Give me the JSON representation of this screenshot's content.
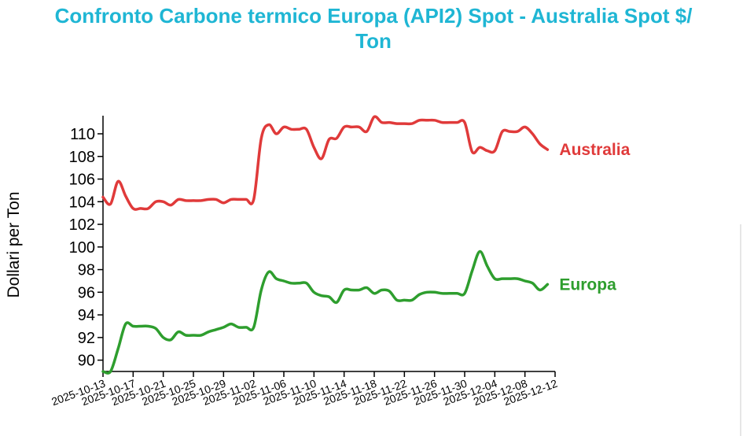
{
  "chart_data": {
    "type": "line",
    "title_lines": [
      "Confronto Carbone termico Europa (API2) Spot - Australia Spot $/",
      "Ton"
    ],
    "ylabel": "Dollari per Ton",
    "xlabel": "",
    "ylim": [
      89,
      111.6
    ],
    "y_ticks": [
      90,
      92,
      94,
      96,
      98,
      100,
      102,
      104,
      106,
      108,
      110
    ],
    "x_start": "2025-10-13",
    "x_end": "2025-12-12",
    "x_ticks": [
      "2025-10-13",
      "2025-10-17",
      "2025-10-21",
      "2025-10-25",
      "2025-10-29",
      "2025-11-02",
      "2025-11-06",
      "2025-11-10",
      "2025-11-14",
      "2025-11-18",
      "2025-11-22",
      "2025-11-26",
      "2025-11-30",
      "2025-12-04",
      "2025-12-08",
      "2025-12-12"
    ],
    "grid": false,
    "legend": "end-of-line labels",
    "series": [
      {
        "name": "Australia",
        "color": "#e03a3a",
        "x": [
          "2025-10-13",
          "2025-10-14",
          "2025-10-15",
          "2025-10-16",
          "2025-10-17",
          "2025-10-18",
          "2025-10-19",
          "2025-10-20",
          "2025-10-21",
          "2025-10-22",
          "2025-10-23",
          "2025-10-24",
          "2025-10-25",
          "2025-10-26",
          "2025-10-27",
          "2025-10-28",
          "2025-10-29",
          "2025-10-30",
          "2025-10-31",
          "2025-11-01",
          "2025-11-02",
          "2025-11-03",
          "2025-11-04",
          "2025-11-05",
          "2025-11-06",
          "2025-11-07",
          "2025-11-08",
          "2025-11-09",
          "2025-11-10",
          "2025-11-11",
          "2025-11-12",
          "2025-11-13",
          "2025-11-14",
          "2025-11-15",
          "2025-11-16",
          "2025-11-17",
          "2025-11-18",
          "2025-11-19",
          "2025-11-20",
          "2025-11-21",
          "2025-11-22",
          "2025-11-23",
          "2025-11-24",
          "2025-11-25",
          "2025-11-26",
          "2025-11-27",
          "2025-11-28",
          "2025-11-29",
          "2025-11-30",
          "2025-12-01",
          "2025-12-02",
          "2025-12-03",
          "2025-12-04",
          "2025-12-05",
          "2025-12-06",
          "2025-12-07",
          "2025-12-08",
          "2025-12-09",
          "2025-12-10",
          "2025-12-11"
        ],
        "values": [
          104.4,
          103.8,
          105.8,
          104.5,
          103.4,
          103.4,
          103.4,
          104.0,
          104.0,
          103.7,
          104.2,
          104.1,
          104.1,
          104.1,
          104.2,
          104.2,
          103.9,
          104.2,
          104.2,
          104.2,
          104.2,
          109.6,
          110.8,
          110.0,
          110.6,
          110.4,
          110.4,
          110.4,
          108.8,
          107.8,
          109.5,
          109.6,
          110.6,
          110.6,
          110.6,
          110.2,
          111.5,
          111.0,
          111.0,
          110.9,
          110.9,
          110.9,
          111.2,
          111.2,
          111.2,
          111.0,
          111.0,
          111.0,
          111.0,
          108.4,
          108.8,
          108.5,
          108.5,
          110.2,
          110.2,
          110.2,
          110.6,
          110.0,
          109.1,
          108.6
        ]
      },
      {
        "name": "Europa",
        "color": "#2e9e2e",
        "x": [
          "2025-10-13",
          "2025-10-14",
          "2025-10-15",
          "2025-10-16",
          "2025-10-17",
          "2025-10-18",
          "2025-10-19",
          "2025-10-20",
          "2025-10-21",
          "2025-10-22",
          "2025-10-23",
          "2025-10-24",
          "2025-10-25",
          "2025-10-26",
          "2025-10-27",
          "2025-10-28",
          "2025-10-29",
          "2025-10-30",
          "2025-10-31",
          "2025-11-01",
          "2025-11-02",
          "2025-11-03",
          "2025-11-04",
          "2025-11-05",
          "2025-11-06",
          "2025-11-07",
          "2025-11-08",
          "2025-11-09",
          "2025-11-10",
          "2025-11-11",
          "2025-11-12",
          "2025-11-13",
          "2025-11-14",
          "2025-11-15",
          "2025-11-16",
          "2025-11-17",
          "2025-11-18",
          "2025-11-19",
          "2025-11-20",
          "2025-11-21",
          "2025-11-22",
          "2025-11-23",
          "2025-11-24",
          "2025-11-25",
          "2025-11-26",
          "2025-11-27",
          "2025-11-28",
          "2025-11-29",
          "2025-11-30",
          "2025-12-01",
          "2025-12-02",
          "2025-12-03",
          "2025-12-04",
          "2025-12-05",
          "2025-12-06",
          "2025-12-07",
          "2025-12-08",
          "2025-12-09",
          "2025-12-10",
          "2025-12-11"
        ],
        "values": [
          89.0,
          89.0,
          91.0,
          93.2,
          93.0,
          93.0,
          93.0,
          92.8,
          92.0,
          91.8,
          92.5,
          92.2,
          92.2,
          92.2,
          92.5,
          92.7,
          92.9,
          93.2,
          92.9,
          92.9,
          92.9,
          96.2,
          97.8,
          97.2,
          97.0,
          96.8,
          96.8,
          96.8,
          96.0,
          95.7,
          95.6,
          95.1,
          96.2,
          96.2,
          96.2,
          96.4,
          95.9,
          96.2,
          96.1,
          95.3,
          95.3,
          95.3,
          95.8,
          96.0,
          96.0,
          95.9,
          95.9,
          95.9,
          95.9,
          97.9,
          99.6,
          98.3,
          97.2,
          97.2,
          97.2,
          97.2,
          97.0,
          96.8,
          96.2,
          96.7
        ]
      }
    ]
  }
}
